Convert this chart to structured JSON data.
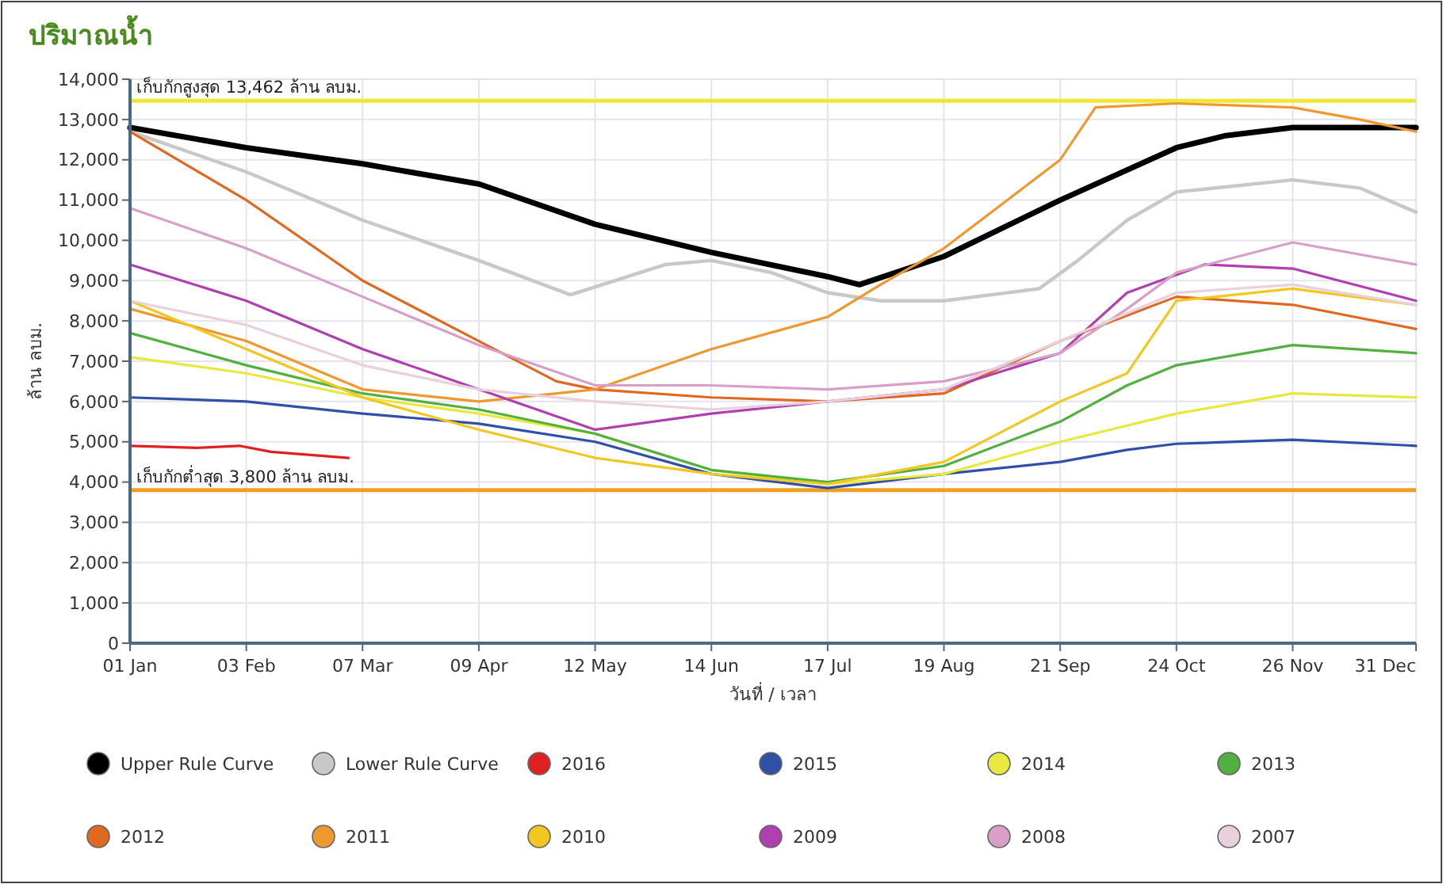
{
  "chart_data": {
    "type": "line",
    "title": "ปริมาณน้ำ",
    "xlabel": "วันที่ / เวลา",
    "ylabel": "ล้าน ลบม.",
    "xlim": [
      "--01-01",
      "--12-31"
    ],
    "xticks": [
      {
        "value": "--01-01",
        "label": "01 Jan"
      },
      {
        "value": "--02-03",
        "label": "03 Feb"
      },
      {
        "value": "--03-07",
        "label": "07 Mar"
      },
      {
        "value": "--04-09",
        "label": "09 Apr"
      },
      {
        "value": "--05-12",
        "label": "12 May"
      },
      {
        "value": "--06-14",
        "label": "14 Jun"
      },
      {
        "value": "--07-17",
        "label": "17 Jul"
      },
      {
        "value": "--08-19",
        "label": "19 Aug"
      },
      {
        "value": "--09-21",
        "label": "21 Sep"
      },
      {
        "value": "--10-24",
        "label": "24 Oct"
      },
      {
        "value": "--11-26",
        "label": "26 Nov"
      },
      {
        "value": "--12-31",
        "label": "31 Dec"
      }
    ],
    "ylim": [
      0,
      14000
    ],
    "yticks": [
      {
        "value": 0,
        "label": "0"
      },
      {
        "value": 1000,
        "label": "1,000"
      },
      {
        "value": 2000,
        "label": "2,000"
      },
      {
        "value": 3000,
        "label": "3,000"
      },
      {
        "value": 4000,
        "label": "4,000"
      },
      {
        "value": 5000,
        "label": "5,000"
      },
      {
        "value": 6000,
        "label": "6,000"
      },
      {
        "value": 7000,
        "label": "7,000"
      },
      {
        "value": 8000,
        "label": "8,000"
      },
      {
        "value": 9000,
        "label": "9,000"
      },
      {
        "value": 10000,
        "label": "10,000"
      },
      {
        "value": 11000,
        "label": "11,000"
      },
      {
        "value": 12000,
        "label": "12,000"
      },
      {
        "value": 13000,
        "label": "13,000"
      },
      {
        "value": 14000,
        "label": "14,000"
      }
    ],
    "grid": true,
    "legend": "bottom",
    "ref_lines": [
      {
        "axis": "y",
        "value": 13462,
        "label": "เก็บกักสูงสุด 13,462 ล้าน ลบม.",
        "color": "#f0e830"
      },
      {
        "axis": "y",
        "value": 3800,
        "label": "เก็บกักต่ำสุด 3,800 ล้าน ลบม.",
        "color": "#f0a020"
      }
    ],
    "series": [
      {
        "name": "Upper Rule Curve",
        "color": "#000000",
        "x": [
          "--01-01",
          "--02-03",
          "--03-07",
          "--04-09",
          "--05-12",
          "--06-14",
          "--07-17",
          "--07-26",
          "--08-19",
          "--09-21",
          "--10-24",
          "--11-07",
          "--11-26",
          "--12-31"
        ],
        "values": [
          12800,
          12300,
          11900,
          11400,
          10400,
          9700,
          9100,
          8900,
          9600,
          11000,
          12300,
          12600,
          12800,
          12800
        ]
      },
      {
        "name": "Lower Rule Curve",
        "color": "#c8c8c8",
        "x": [
          "--01-01",
          "--02-03",
          "--03-07",
          "--04-09",
          "--05-05",
          "--06-01",
          "--06-14",
          "--07-01",
          "--07-17",
          "--08-01",
          "--08-19",
          "--09-15",
          "--09-26",
          "--10-10",
          "--10-24",
          "--11-26",
          "--12-15",
          "--12-31"
        ],
        "values": [
          12700,
          11700,
          10500,
          9500,
          8650,
          9400,
          9500,
          9200,
          8700,
          8500,
          8500,
          8800,
          9500,
          10500,
          11200,
          11500,
          11300,
          10700
        ]
      },
      {
        "name": "2016",
        "color": "#e02020",
        "x": [
          "--01-01",
          "--01-20",
          "--02-01",
          "--02-10",
          "--03-03"
        ],
        "values": [
          4900,
          4850,
          4900,
          4750,
          4600
        ]
      },
      {
        "name": "2015",
        "color": "#3050a8",
        "x": [
          "--01-01",
          "--02-03",
          "--03-07",
          "--04-09",
          "--05-12",
          "--06-14",
          "--07-17",
          "--08-19",
          "--09-21",
          "--10-10",
          "--10-24",
          "--11-26",
          "--12-31"
        ],
        "values": [
          6100,
          6000,
          5700,
          5450,
          5000,
          4200,
          3850,
          4200,
          4500,
          4800,
          4950,
          5050,
          4900
        ]
      },
      {
        "name": "2014",
        "color": "#e8e840",
        "x": [
          "--01-01",
          "--02-03",
          "--03-07",
          "--04-09",
          "--05-12",
          "--06-14",
          "--07-17",
          "--08-19",
          "--09-21",
          "--10-24",
          "--11-26",
          "--12-31"
        ],
        "values": [
          7100,
          6700,
          6100,
          5700,
          5200,
          4300,
          3950,
          4200,
          5000,
          5700,
          6200,
          6100
        ]
      },
      {
        "name": "2013",
        "color": "#50b040",
        "x": [
          "--01-01",
          "--02-03",
          "--03-07",
          "--04-09",
          "--05-12",
          "--06-14",
          "--07-17",
          "--08-19",
          "--09-21",
          "--10-10",
          "--10-24",
          "--11-26",
          "--12-31"
        ],
        "values": [
          7700,
          6900,
          6200,
          5800,
          5200,
          4300,
          4000,
          4400,
          5500,
          6400,
          6900,
          7400,
          7200
        ]
      },
      {
        "name": "2012",
        "color": "#e06820",
        "x": [
          "--01-01",
          "--02-03",
          "--03-07",
          "--04-09",
          "--05-01",
          "--05-12",
          "--06-14",
          "--07-17",
          "--08-19",
          "--09-21",
          "--10-24",
          "--11-26",
          "--12-31"
        ],
        "values": [
          12700,
          11000,
          9000,
          7500,
          6500,
          6300,
          6100,
          6000,
          6200,
          7500,
          8600,
          8400,
          7800
        ]
      },
      {
        "name": "2011",
        "color": "#f09830",
        "x": [
          "--01-01",
          "--02-03",
          "--03-07",
          "--04-09",
          "--05-12",
          "--06-14",
          "--07-17",
          "--08-01",
          "--08-19",
          "--09-21",
          "--10-01",
          "--10-24",
          "--11-26",
          "--12-15",
          "--12-31"
        ],
        "values": [
          8300,
          7500,
          6300,
          6000,
          6300,
          7300,
          8100,
          8900,
          9800,
          12000,
          13300,
          13400,
          13300,
          13000,
          12700
        ]
      },
      {
        "name": "2010",
        "color": "#f0c820",
        "x": [
          "--01-01",
          "--02-03",
          "--03-07",
          "--04-09",
          "--05-12",
          "--06-14",
          "--07-17",
          "--08-19",
          "--09-21",
          "--10-10",
          "--10-24",
          "--11-26",
          "--12-31"
        ],
        "values": [
          8500,
          7300,
          6100,
          5300,
          4600,
          4200,
          3950,
          4500,
          6000,
          6700,
          8500,
          8800,
          8400
        ]
      },
      {
        "name": "2009",
        "color": "#b040b0",
        "x": [
          "--01-01",
          "--02-03",
          "--03-07",
          "--04-09",
          "--05-12",
          "--06-14",
          "--07-17",
          "--08-19",
          "--09-21",
          "--10-10",
          "--11-01",
          "--11-26",
          "--12-31"
        ],
        "values": [
          9400,
          8500,
          7300,
          6300,
          5300,
          5700,
          6000,
          6300,
          7200,
          8700,
          9400,
          9300,
          8500
        ]
      },
      {
        "name": "2008",
        "color": "#d8a0c8",
        "x": [
          "--01-01",
          "--02-03",
          "--03-07",
          "--04-09",
          "--05-12",
          "--06-14",
          "--07-17",
          "--08-19",
          "--09-21",
          "--10-10",
          "--10-24",
          "--11-26",
          "--12-31"
        ],
        "values": [
          10800,
          9800,
          8600,
          7400,
          6400,
          6400,
          6300,
          6500,
          7200,
          8300,
          9200,
          9950,
          9400
        ]
      },
      {
        "name": "2007",
        "color": "#e8d0dc",
        "x": [
          "--01-01",
          "--02-03",
          "--03-07",
          "--04-09",
          "--05-12",
          "--06-14",
          "--07-17",
          "--08-19",
          "--09-21",
          "--10-24",
          "--11-26",
          "--12-31"
        ],
        "values": [
          8500,
          7900,
          6900,
          6300,
          6000,
          5800,
          6000,
          6300,
          7500,
          8700,
          8900,
          8400
        ]
      }
    ]
  }
}
